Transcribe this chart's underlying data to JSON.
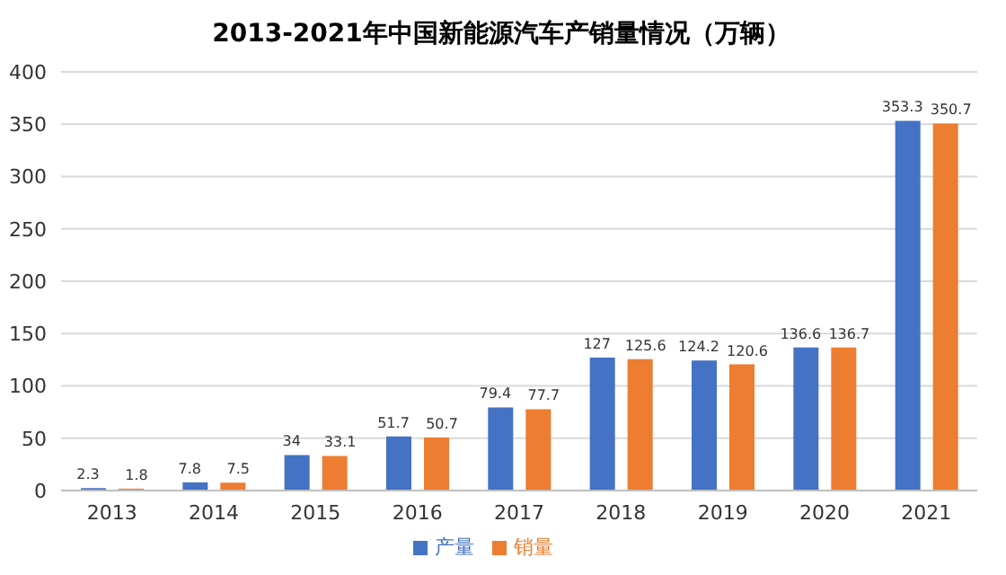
{
  "chart_data": {
    "type": "bar",
    "title": "2013-2021年中国新能源汽车产销量情况（万辆）",
    "categories": [
      "2013",
      "2014",
      "2015",
      "2016",
      "2017",
      "2018",
      "2019",
      "2020",
      "2021"
    ],
    "series": [
      {
        "name": "产量",
        "color": "#4472c4",
        "values": [
          2.3,
          7.8,
          34,
          51.7,
          79.4,
          127,
          124.2,
          136.6,
          353.3
        ]
      },
      {
        "name": "销量",
        "color": "#ed7d31",
        "values": [
          1.8,
          7.5,
          33.1,
          50.7,
          77.7,
          125.6,
          120.6,
          136.7,
          350.7
        ]
      }
    ],
    "ylim": [
      0,
      400
    ],
    "yticks": [
      0,
      50,
      100,
      150,
      200,
      250,
      300,
      350,
      400
    ],
    "grid": "y",
    "legend": "bottom",
    "data_labels": true
  }
}
